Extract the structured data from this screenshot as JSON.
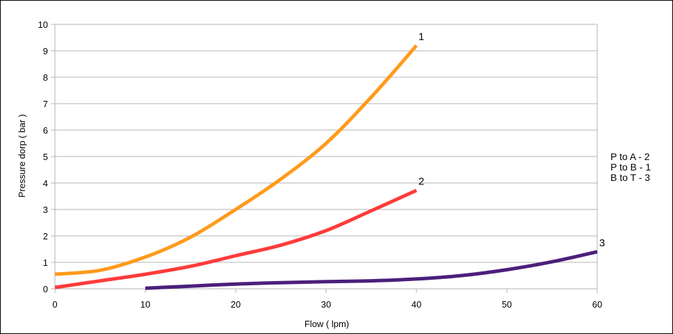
{
  "chart_data": {
    "type": "line",
    "title": "",
    "xlabel": "Flow ( lpm)",
    "ylabel": "Pressure dorp ( bar )",
    "xlim": [
      0,
      60
    ],
    "ylim": [
      0,
      10
    ],
    "x_ticks": [
      "0",
      "10",
      "20",
      "30",
      "40",
      "50",
      "60"
    ],
    "y_ticks": [
      "0",
      "1",
      "2",
      "3",
      "4",
      "5",
      "6",
      "7",
      "8",
      "9",
      "10"
    ],
    "grid": "horizontal",
    "series": [
      {
        "name": "1",
        "color": "#ff9a1c",
        "x": [
          0,
          5,
          10,
          15,
          20,
          25,
          30,
          35,
          40
        ],
        "y": [
          0.55,
          0.7,
          1.2,
          1.95,
          3.0,
          4.15,
          5.5,
          7.25,
          9.2
        ]
      },
      {
        "name": "2",
        "color": "#ff3b3b",
        "x": [
          0,
          5,
          10,
          15,
          20,
          25,
          30,
          35,
          40
        ],
        "y": [
          0.05,
          0.3,
          0.55,
          0.85,
          1.25,
          1.65,
          2.2,
          2.95,
          3.72
        ]
      },
      {
        "name": "3",
        "color": "#4b1f7a",
        "x": [
          10,
          15,
          20,
          25,
          30,
          35,
          40,
          45,
          50,
          55,
          60
        ],
        "y": [
          0.02,
          0.1,
          0.18,
          0.23,
          0.27,
          0.3,
          0.37,
          0.5,
          0.72,
          1.02,
          1.4
        ]
      }
    ],
    "legend": {
      "position": "right",
      "entries": [
        "P to A - 2",
        "P to B - 1",
        "B to T - 3"
      ]
    }
  }
}
